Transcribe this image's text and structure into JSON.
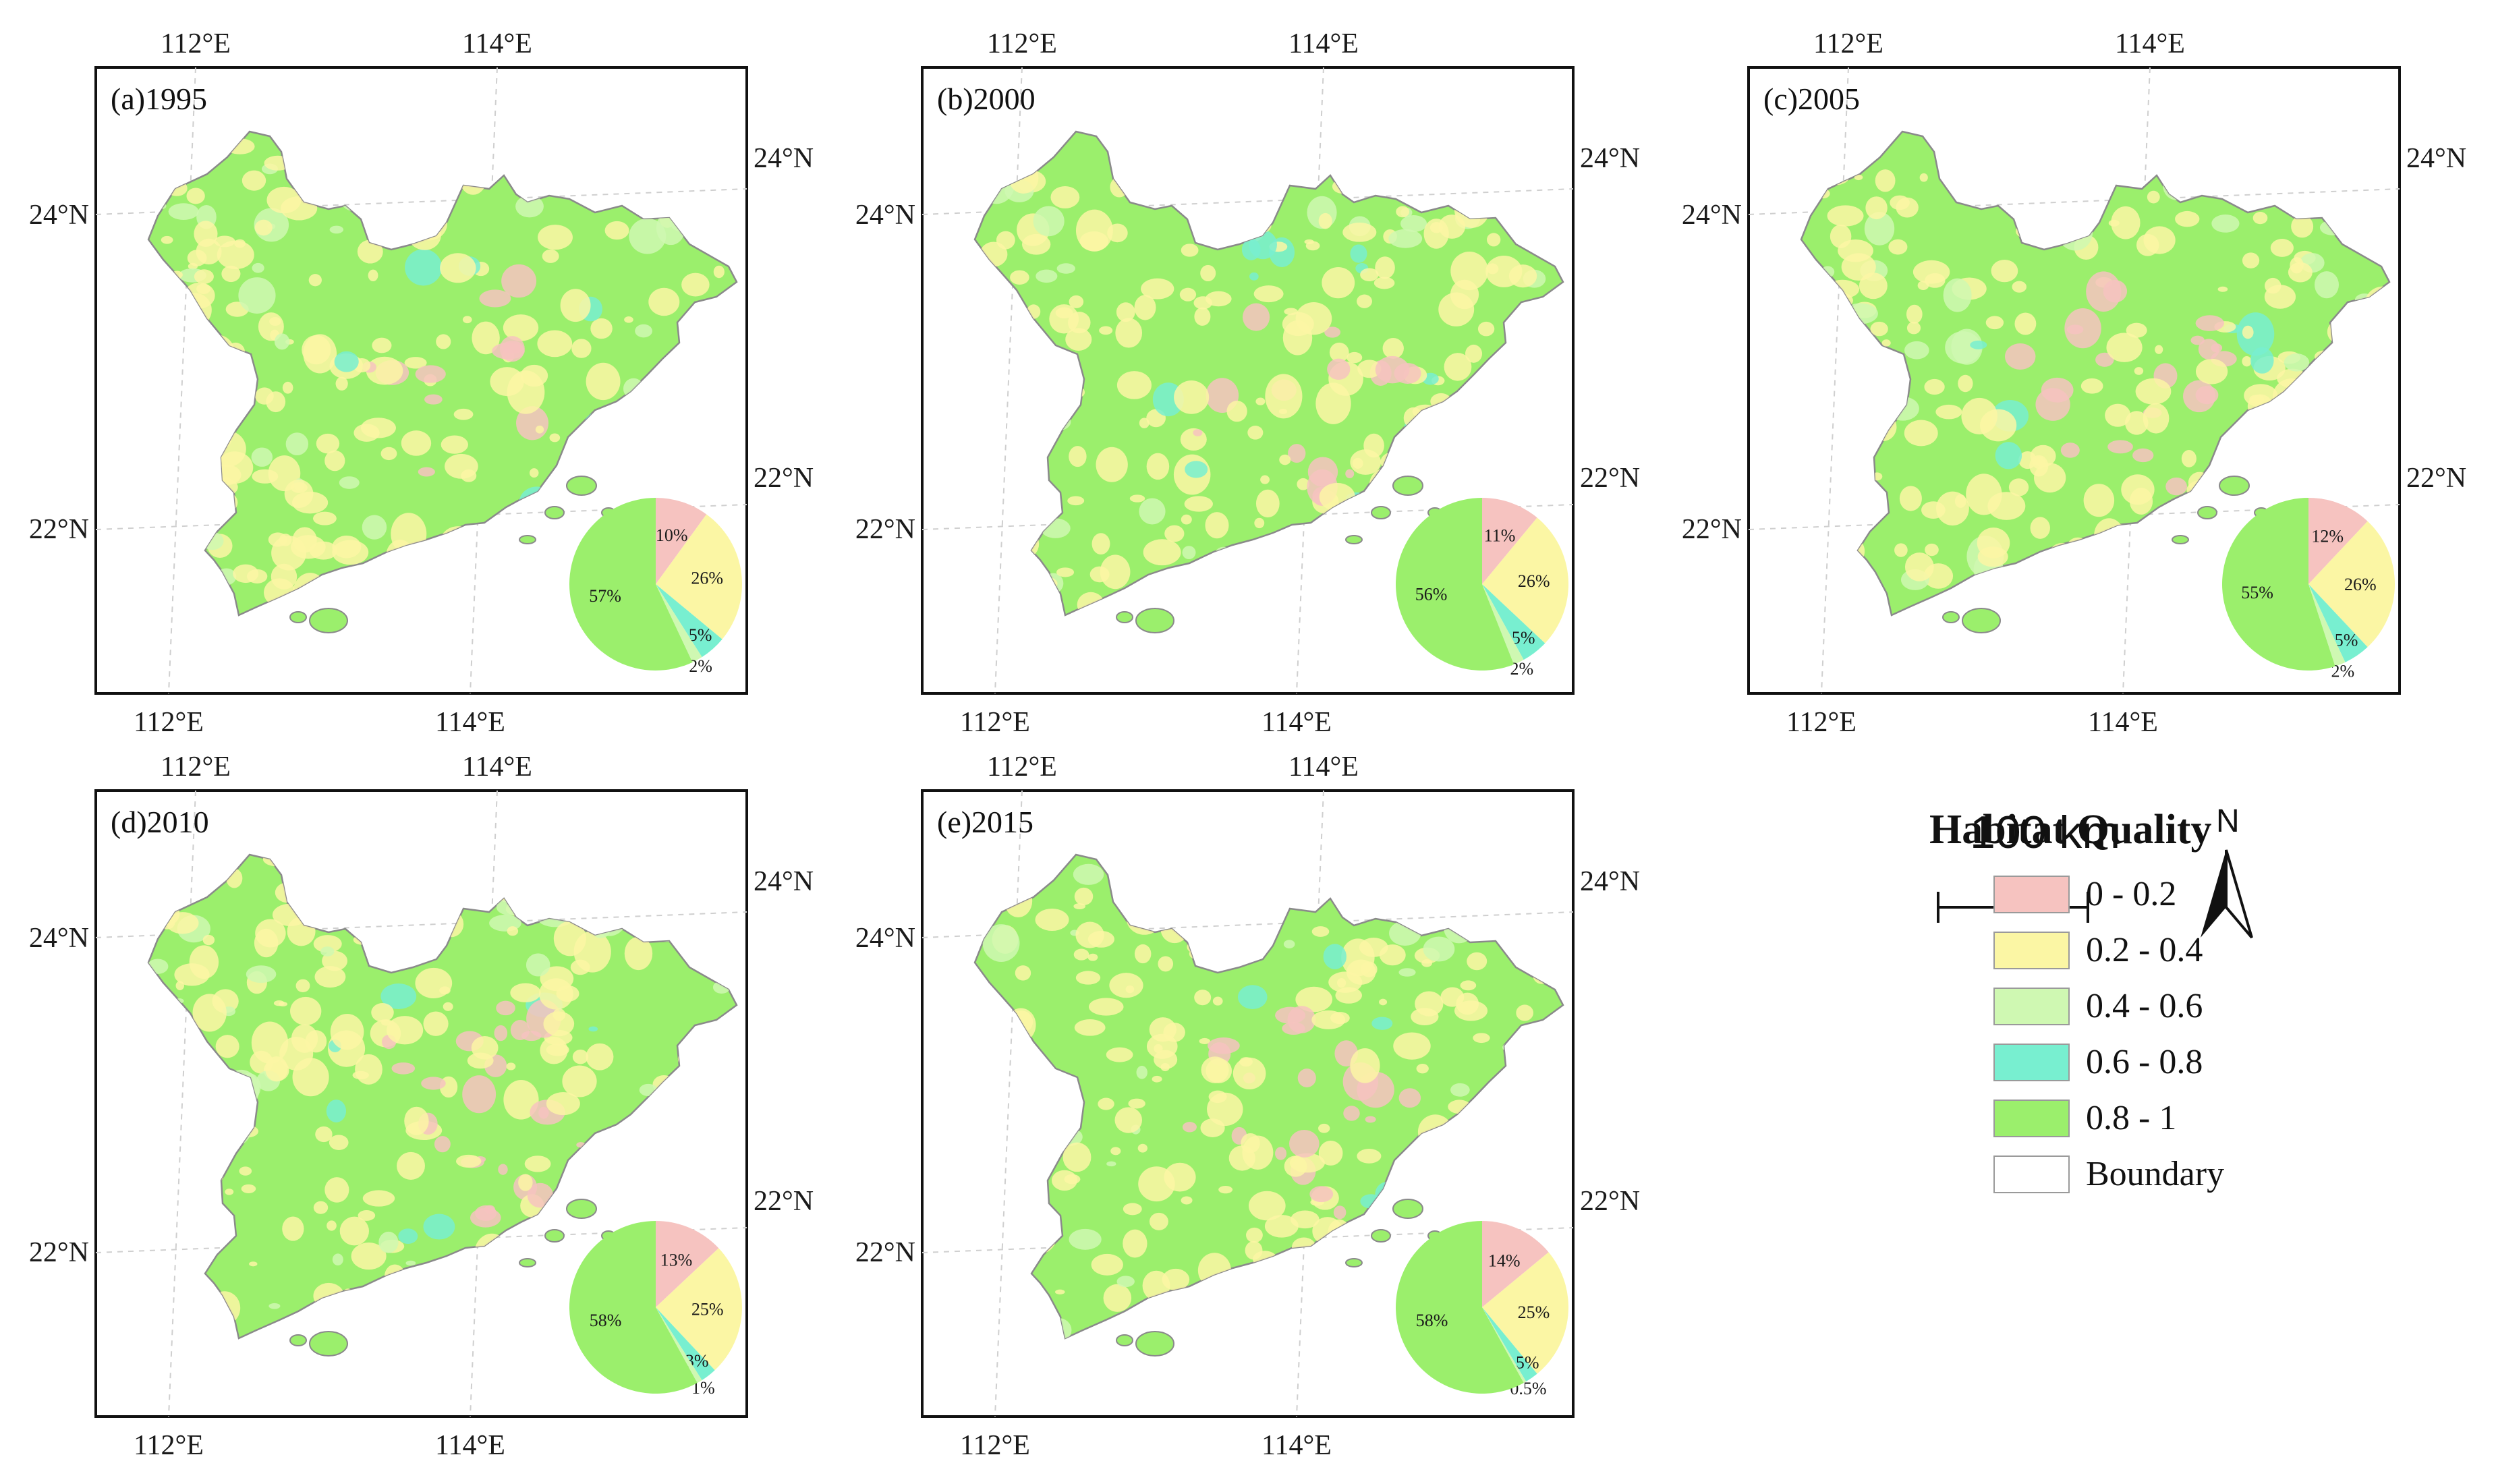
{
  "colors": {
    "c0": "#f6c3c0",
    "c1": "#fbf6a4",
    "c2": "#cff8b2",
    "c3": "#78efd0",
    "c4": "#9bef6c",
    "boundary": "#ffffff"
  },
  "axis_labels": {
    "lon_112": "112°E",
    "lon_114": "114°E",
    "lat_24": "24°N",
    "lat_22": "22°N"
  },
  "panels": [
    {
      "title": "(a)1995",
      "slices": [
        10,
        26,
        5,
        2,
        57
      ],
      "labels": [
        "10%",
        "26%",
        "5%",
        "2%",
        "57%"
      ]
    },
    {
      "title": "(b)2000",
      "slices": [
        11,
        26,
        5,
        2,
        56
      ],
      "labels": [
        "11%",
        "26%",
        "5%",
        "2%",
        "56%"
      ]
    },
    {
      "title": "(c)2005",
      "slices": [
        12,
        26,
        5,
        2,
        55
      ],
      "labels": [
        "12%",
        "26%",
        "5%",
        "2%",
        "55%"
      ]
    },
    {
      "title": "(d)2010",
      "slices": [
        13,
        25,
        3,
        1,
        58
      ],
      "labels": [
        "13%",
        "25%",
        "3%",
        "1%",
        "58%"
      ]
    },
    {
      "title": "(e)2015",
      "slices": [
        14,
        25,
        2.5,
        0.5,
        58
      ],
      "labels": [
        "14%",
        "25%",
        "2.5%",
        "0.5%",
        "58%"
      ]
    }
  ],
  "scale_bar": {
    "label": "100 km"
  },
  "north_arrow": {
    "label": "N"
  },
  "legend": {
    "title": "Habitat Quality",
    "items": [
      {
        "label": "0 - 0.2",
        "color": "#f6c3c0"
      },
      {
        "label": "0.2 - 0.4",
        "color": "#fbf6a4"
      },
      {
        "label": "0.4 - 0.6",
        "color": "#cff8b2"
      },
      {
        "label": "0.6 - 0.8",
        "color": "#78efd0"
      },
      {
        "label": "0.8 - 1",
        "color": "#9bef6c"
      },
      {
        "label": "Boundary",
        "color": "#ffffff"
      }
    ]
  }
}
